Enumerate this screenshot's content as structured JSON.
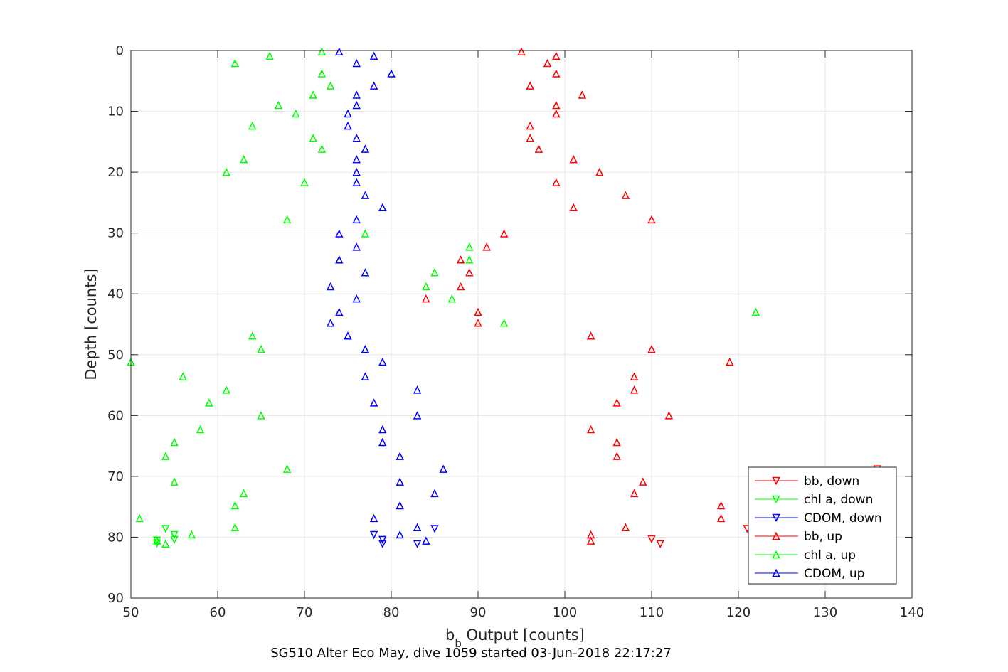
{
  "chart_data": {
    "type": "scatter",
    "title": "",
    "xlabel": "b",
    "xlabel_subscript": "b",
    "xlabel_suffix": " Output [counts]",
    "ylabel": "Depth [counts]",
    "caption": "SG510 Alter Eco May, dive 1059 started 03-Jun-2018 22:17:27",
    "xlim": [
      50,
      140
    ],
    "ylim": [
      0,
      90
    ],
    "y_reversed": true,
    "xticks": [
      50,
      60,
      70,
      80,
      90,
      100,
      110,
      120,
      130,
      140
    ],
    "yticks": [
      0,
      10,
      20,
      30,
      40,
      50,
      60,
      70,
      80,
      90
    ],
    "grid": true,
    "legend_position": "lower-right",
    "series": [
      {
        "name": "bb, down",
        "color": "#ff0000",
        "marker": "triangle-down",
        "points": [
          [
            110,
            80.3
          ],
          [
            111,
            81.1
          ],
          [
            121,
            78.6
          ],
          [
            136,
            68.8
          ]
        ]
      },
      {
        "name": "chl a, down",
        "color": "#00ff00",
        "marker": "triangle-down",
        "points": [
          [
            53,
            80.5
          ],
          [
            53,
            81.0
          ],
          [
            54,
            78.6
          ],
          [
            55,
            79.6
          ],
          [
            55,
            80.4
          ]
        ]
      },
      {
        "name": "CDOM, down",
        "color": "#0000ff",
        "marker": "triangle-down",
        "points": [
          [
            78,
            79.6
          ],
          [
            79,
            80.4
          ],
          [
            79,
            81.1
          ],
          [
            83,
            81.1
          ],
          [
            85,
            78.6
          ]
        ]
      },
      {
        "name": "bb, up",
        "color": "#ff0000",
        "marker": "triangle-up",
        "points": [
          [
            95,
            0.2
          ],
          [
            99,
            0.9
          ],
          [
            98,
            2.1
          ],
          [
            99,
            3.8
          ],
          [
            96,
            5.8
          ],
          [
            102,
            7.3
          ],
          [
            99,
            9.0
          ],
          [
            99,
            10.4
          ],
          [
            96,
            12.4
          ],
          [
            96,
            14.4
          ],
          [
            97,
            16.2
          ],
          [
            101,
            17.9
          ],
          [
            104,
            20.0
          ],
          [
            99,
            21.7
          ],
          [
            107,
            23.8
          ],
          [
            101,
            25.8
          ],
          [
            110,
            27.8
          ],
          [
            93,
            30.1
          ],
          [
            91,
            32.3
          ],
          [
            88,
            34.4
          ],
          [
            89,
            36.5
          ],
          [
            88,
            38.8
          ],
          [
            84,
            40.8
          ],
          [
            90,
            43.0
          ],
          [
            90,
            44.8
          ],
          [
            103,
            46.9
          ],
          [
            110,
            49.1
          ],
          [
            119,
            51.2
          ],
          [
            108,
            53.6
          ],
          [
            108,
            55.8
          ],
          [
            106,
            57.9
          ],
          [
            112,
            60.0
          ],
          [
            103,
            62.3
          ],
          [
            106,
            64.4
          ],
          [
            106,
            66.7
          ],
          [
            109,
            70.9
          ],
          [
            108,
            72.8
          ],
          [
            118,
            74.8
          ],
          [
            118,
            76.9
          ],
          [
            107,
            78.4
          ],
          [
            103,
            79.6
          ],
          [
            103,
            80.6
          ]
        ]
      },
      {
        "name": "chl a, up",
        "color": "#00ff00",
        "marker": "triangle-up",
        "points": [
          [
            72,
            0.2
          ],
          [
            66,
            0.9
          ],
          [
            62,
            2.1
          ],
          [
            72,
            3.8
          ],
          [
            73,
            5.8
          ],
          [
            71,
            7.3
          ],
          [
            67,
            9.0
          ],
          [
            69,
            10.4
          ],
          [
            64,
            12.4
          ],
          [
            71,
            14.4
          ],
          [
            72,
            16.2
          ],
          [
            63,
            17.9
          ],
          [
            61,
            20.0
          ],
          [
            70,
            21.7
          ],
          [
            68,
            27.8
          ],
          [
            77,
            30.1
          ],
          [
            89,
            32.3
          ],
          [
            89,
            34.4
          ],
          [
            85,
            36.5
          ],
          [
            84,
            38.8
          ],
          [
            87,
            40.8
          ],
          [
            122,
            43.0
          ],
          [
            93,
            44.8
          ],
          [
            64,
            46.9
          ],
          [
            65,
            49.1
          ],
          [
            50,
            51.2
          ],
          [
            56,
            53.6
          ],
          [
            61,
            55.8
          ],
          [
            59,
            57.9
          ],
          [
            65,
            60.0
          ],
          [
            58,
            62.3
          ],
          [
            55,
            64.4
          ],
          [
            54,
            66.7
          ],
          [
            68,
            68.8
          ],
          [
            55,
            70.9
          ],
          [
            63,
            72.8
          ],
          [
            62,
            74.8
          ],
          [
            51,
            76.9
          ],
          [
            62,
            78.4
          ],
          [
            57,
            79.6
          ],
          [
            53,
            80.6
          ],
          [
            54,
            81.1
          ]
        ]
      },
      {
        "name": "CDOM, up",
        "color": "#0000ff",
        "marker": "triangle-up",
        "points": [
          [
            74,
            0.2
          ],
          [
            78,
            0.9
          ],
          [
            76,
            2.1
          ],
          [
            80,
            3.8
          ],
          [
            78,
            5.8
          ],
          [
            76,
            7.3
          ],
          [
            76,
            9.0
          ],
          [
            75,
            10.4
          ],
          [
            75,
            12.4
          ],
          [
            76,
            14.4
          ],
          [
            77,
            16.2
          ],
          [
            76,
            17.9
          ],
          [
            76,
            20.0
          ],
          [
            76,
            21.7
          ],
          [
            77,
            23.8
          ],
          [
            79,
            25.8
          ],
          [
            76,
            27.8
          ],
          [
            74,
            30.1
          ],
          [
            76,
            32.3
          ],
          [
            74,
            34.4
          ],
          [
            77,
            36.5
          ],
          [
            73,
            38.8
          ],
          [
            76,
            40.8
          ],
          [
            74,
            43.0
          ],
          [
            73,
            44.8
          ],
          [
            75,
            46.9
          ],
          [
            77,
            49.1
          ],
          [
            79,
            51.2
          ],
          [
            77,
            53.6
          ],
          [
            83,
            55.8
          ],
          [
            78,
            57.9
          ],
          [
            83,
            60.0
          ],
          [
            79,
            62.3
          ],
          [
            79,
            64.4
          ],
          [
            81,
            66.7
          ],
          [
            86,
            68.8
          ],
          [
            81,
            70.9
          ],
          [
            85,
            72.8
          ],
          [
            81,
            74.8
          ],
          [
            78,
            76.9
          ],
          [
            83,
            78.4
          ],
          [
            81,
            79.6
          ],
          [
            84,
            80.6
          ]
        ]
      }
    ]
  }
}
